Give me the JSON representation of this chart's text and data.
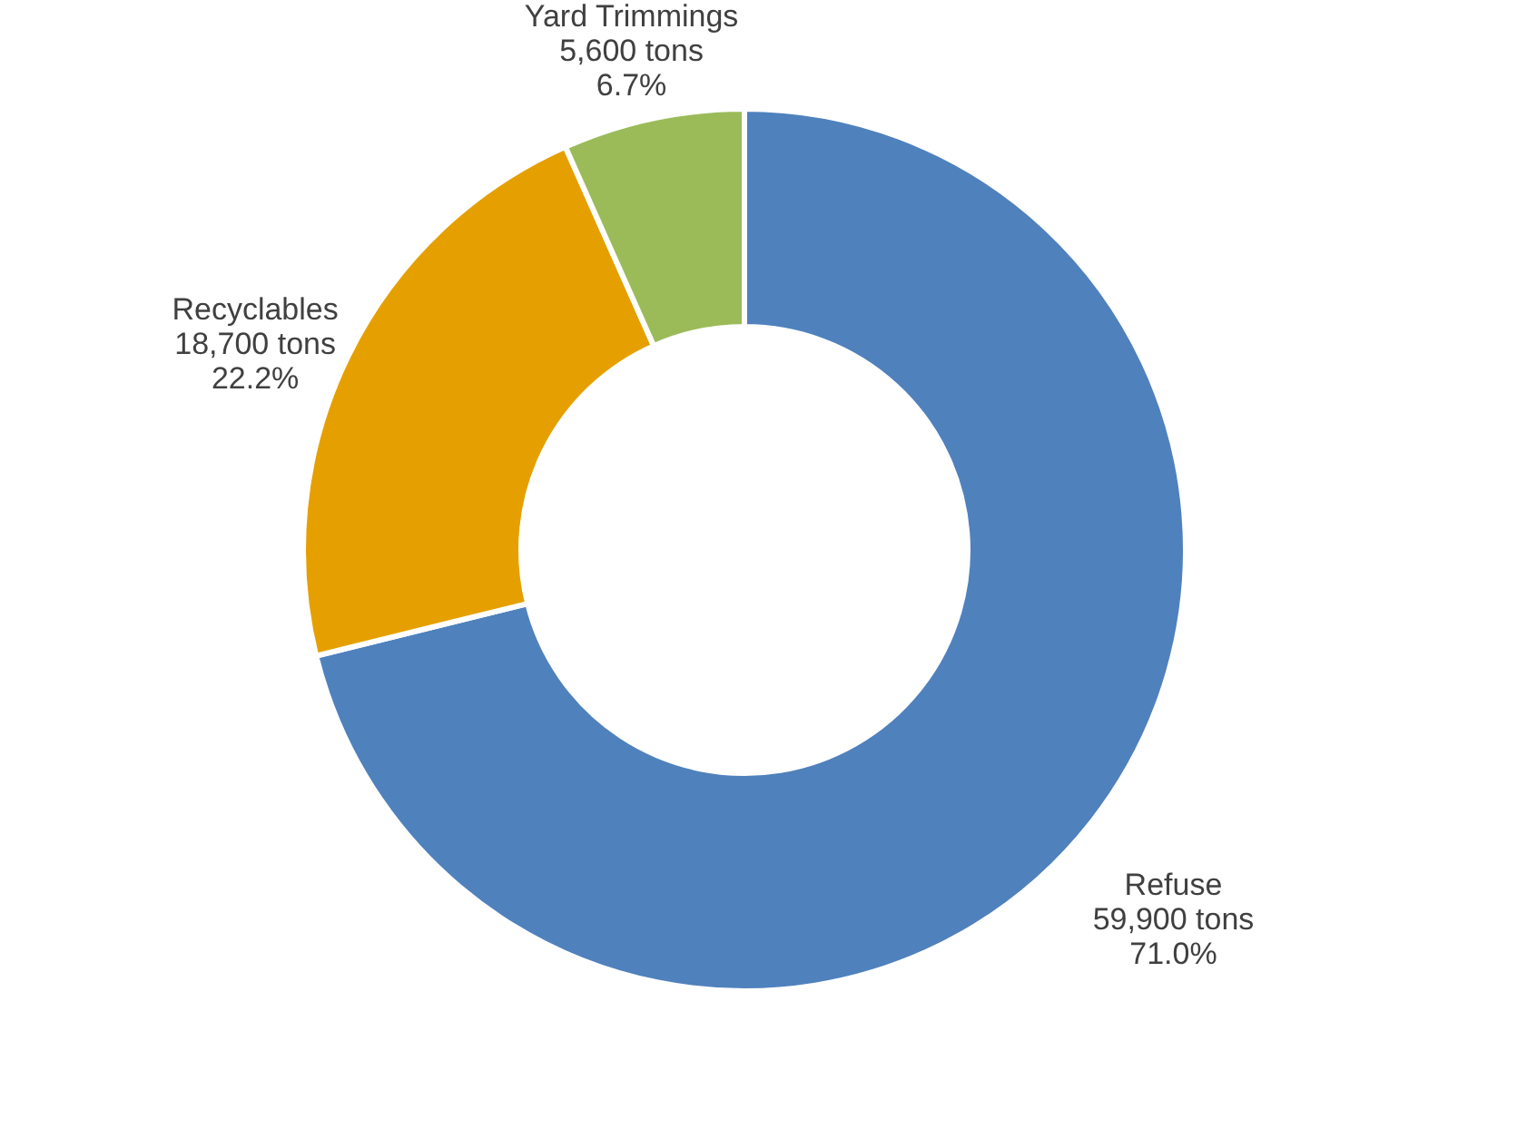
{
  "chart_data": {
    "type": "donut",
    "categories": [
      "Refuse",
      "Recyclables",
      "Yard Trimmings"
    ],
    "values": [
      59900,
      18700,
      5600
    ],
    "value_labels": [
      "59,900 tons\n71.0%",
      "18,700 tons\n22.2%",
      "5,600 tons\n6.7%"
    ],
    "colors": [
      "#4f81bd",
      "#e5a000",
      "#9bbb59"
    ],
    "legend": false
  }
}
